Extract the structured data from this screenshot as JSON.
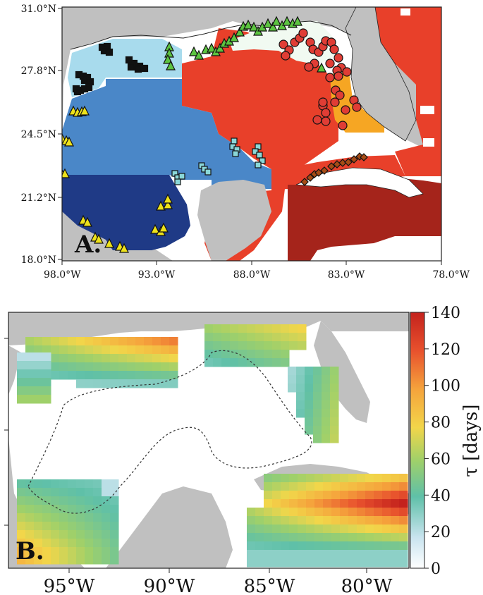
{
  "panel_a": {
    "label": "A.",
    "lat_ticks": [
      "31.0°N",
      "27.8°N",
      "24.5°N",
      "21.2°N",
      "18.0°N"
    ],
    "lon_ticks": [
      "98.0°W",
      "93.0°W",
      "88.0°W",
      "83.0°W",
      "78.0°W"
    ],
    "region_colors": {
      "north_west_shelf": "#a8dbed",
      "central_west": "#4a87c8",
      "south_west": "#1f3a86",
      "east": "#e8402a",
      "caribbean": "#a5241b",
      "west_florida_shelf": "#f6a623",
      "northern_gulf_patch": "#f1faf1",
      "land": "#c0c0c0"
    },
    "marker_groups": [
      {
        "id": "black-squares",
        "color": "#111111",
        "shape": "square"
      },
      {
        "id": "green-triangles",
        "color": "#5cc440",
        "shape": "triangle"
      },
      {
        "id": "red-circles",
        "color": "#e03d35",
        "shape": "circle"
      },
      {
        "id": "cyan-squares",
        "color": "#8ad7d8",
        "shape": "square"
      },
      {
        "id": "yellow-triangles",
        "color": "#eee21b",
        "shape": "triangle"
      },
      {
        "id": "brown-diamonds",
        "color": "#a64c16",
        "shape": "diamond"
      }
    ]
  },
  "panel_b": {
    "label": "B.",
    "lon_ticks": [
      "95°W",
      "90°W",
      "85°W",
      "80°W"
    ],
    "colorbar": {
      "ticks": [
        "140",
        "120",
        "100",
        "80",
        "60",
        "40",
        "20",
        "0"
      ],
      "title": "τ [days]",
      "min": 0,
      "max": 140
    },
    "land": "#c0c0c0"
  }
}
